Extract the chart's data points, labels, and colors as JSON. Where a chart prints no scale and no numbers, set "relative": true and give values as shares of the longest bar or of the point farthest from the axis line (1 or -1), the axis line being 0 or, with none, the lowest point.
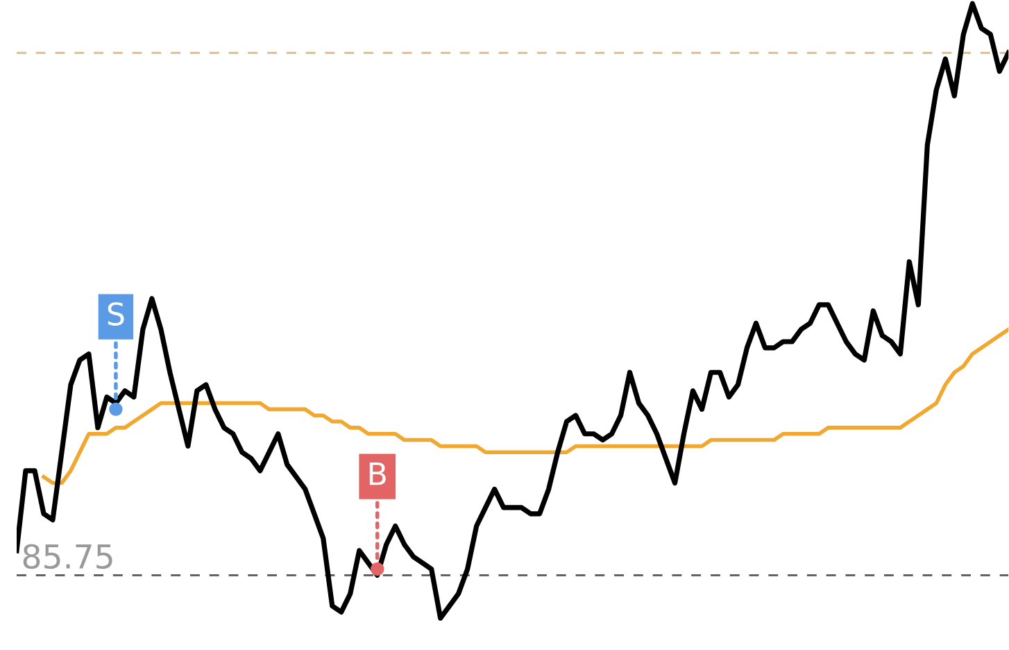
{
  "chart_data": {
    "type": "line",
    "relative": true,
    "categories": [
      null,
      null,
      null,
      null,
      null,
      null,
      null,
      null,
      null,
      null,
      null,
      null,
      null,
      null,
      null,
      null,
      null,
      null,
      null,
      null,
      null,
      null,
      null,
      null,
      null,
      null,
      null,
      null,
      null,
      null,
      null,
      null,
      null,
      null,
      null,
      null,
      null,
      null,
      null,
      null,
      null,
      null,
      null,
      null,
      null,
      null,
      null,
      null,
      null,
      null,
      null,
      null,
      null,
      null,
      null,
      null,
      null,
      null,
      null,
      null,
      null,
      null,
      null,
      null,
      null,
      null,
      null,
      null,
      null,
      null,
      null,
      null,
      null,
      null,
      null,
      null,
      null,
      null,
      null,
      null,
      null,
      null,
      null,
      null,
      null,
      null,
      null,
      null,
      null,
      null,
      null,
      null,
      null,
      null,
      null,
      null,
      null,
      null,
      null,
      null,
      null,
      null,
      null,
      null,
      null,
      null,
      null,
      null,
      null,
      null,
      null
    ],
    "series": [
      {
        "color": "#000000",
        "values": [
          0.11,
          0.24,
          0.24,
          0.17,
          0.16,
          0.27,
          0.38,
          0.42,
          0.43,
          0.31,
          0.36,
          0.35,
          0.37,
          0.36,
          0.47,
          0.52,
          0.47,
          0.4,
          0.34,
          0.28,
          0.37,
          0.38,
          0.34,
          0.31,
          0.3,
          0.27,
          0.26,
          0.24,
          0.27,
          0.3,
          0.25,
          0.23,
          0.21,
          0.17,
          0.13,
          0.02,
          0.01,
          0.04,
          0.11,
          0.09,
          0.07,
          0.12,
          0.15,
          0.12,
          0.1,
          0.09,
          0.08,
          0,
          0.02,
          0.04,
          0.08,
          0.15,
          0.18,
          0.21,
          0.18,
          0.18,
          0.18,
          0.17,
          0.17,
          0.21,
          0.27,
          0.32,
          0.33,
          0.3,
          0.3,
          0.29,
          0.3,
          0.33,
          0.4,
          0.35,
          0.33,
          0.3,
          0.26,
          0.22,
          0.3,
          0.37,
          0.34,
          0.4,
          0.4,
          0.36,
          0.38,
          0.44,
          0.48,
          0.44,
          0.44,
          0.45,
          0.45,
          0.47,
          0.48,
          0.51,
          0.51,
          0.48,
          0.45,
          0.43,
          0.42,
          0.5,
          0.46,
          0.45,
          0.43,
          0.58,
          0.51,
          0.77,
          0.86,
          0.91,
          0.85,
          0.95,
          1,
          0.96,
          0.95,
          0.89,
          0.92
        ]
      },
      {
        "color": "#f0a830",
        "values": [
          null,
          null,
          null,
          0.23,
          0.22,
          0.22,
          0.24,
          0.27,
          0.3,
          0.3,
          0.3,
          0.31,
          0.31,
          0.32,
          0.33,
          0.34,
          0.35,
          0.35,
          0.35,
          0.35,
          0.35,
          0.35,
          0.35,
          0.35,
          0.35,
          0.35,
          0.35,
          0.35,
          0.34,
          0.34,
          0.34,
          0.34,
          0.34,
          0.33,
          0.33,
          0.32,
          0.32,
          0.31,
          0.31,
          0.3,
          0.3,
          0.3,
          0.3,
          0.29,
          0.29,
          0.29,
          0.29,
          0.28,
          0.28,
          0.28,
          0.28,
          0.28,
          0.27,
          0.27,
          0.27,
          0.27,
          0.27,
          0.27,
          0.27,
          0.27,
          0.27,
          0.27,
          0.28,
          0.28,
          0.28,
          0.28,
          0.28,
          0.28,
          0.28,
          0.28,
          0.28,
          0.28,
          0.28,
          0.28,
          0.28,
          0.28,
          0.28,
          0.29,
          0.29,
          0.29,
          0.29,
          0.29,
          0.29,
          0.29,
          0.29,
          0.3,
          0.3,
          0.3,
          0.3,
          0.3,
          0.31,
          0.31,
          0.31,
          0.31,
          0.31,
          0.31,
          0.31,
          0.31,
          0.31,
          0.32,
          0.33,
          0.34,
          0.35,
          0.38,
          0.4,
          0.41,
          0.43,
          0.44,
          0.45,
          0.46,
          0.47
        ]
      }
    ],
    "ref_lines": [
      {
        "axis": "y",
        "value": 0.07,
        "color": "#555555",
        "line_style": "dashed"
      },
      {
        "axis": "y",
        "value": 0.92,
        "color": "#d9b98a",
        "line_style": "dashed"
      }
    ],
    "annotations": [
      "85.75",
      {
        "text": "S",
        "y": 0.34
      },
      {
        "text": "B",
        "y": 0.08
      }
    ]
  }
}
